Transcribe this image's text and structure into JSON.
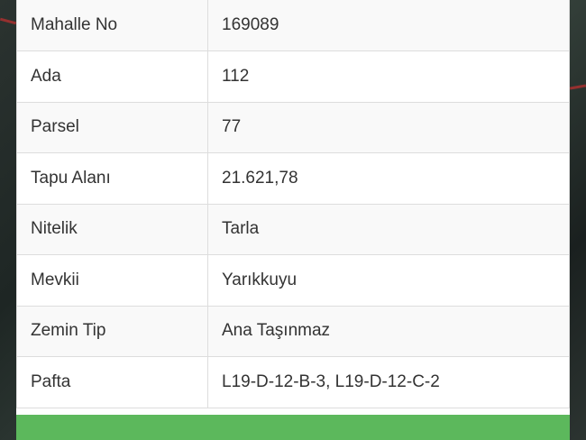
{
  "rows": [
    {
      "label": "Mahalle No",
      "value": "169089"
    },
    {
      "label": "Ada",
      "value": "112"
    },
    {
      "label": "Parsel",
      "value": "77"
    },
    {
      "label": "Tapu Alanı",
      "value": "21.621,78"
    },
    {
      "label": "Nitelik",
      "value": "Tarla"
    },
    {
      "label": "Mevkii",
      "value": "Yarıkkuyu"
    },
    {
      "label": "Zemin Tip",
      "value": "Ana Taşınmaz"
    },
    {
      "label": "Pafta",
      "value": "L19-D-12-B-3, L19-D-12-C-2"
    }
  ],
  "colors": {
    "action_bar": "#5cb85c"
  }
}
